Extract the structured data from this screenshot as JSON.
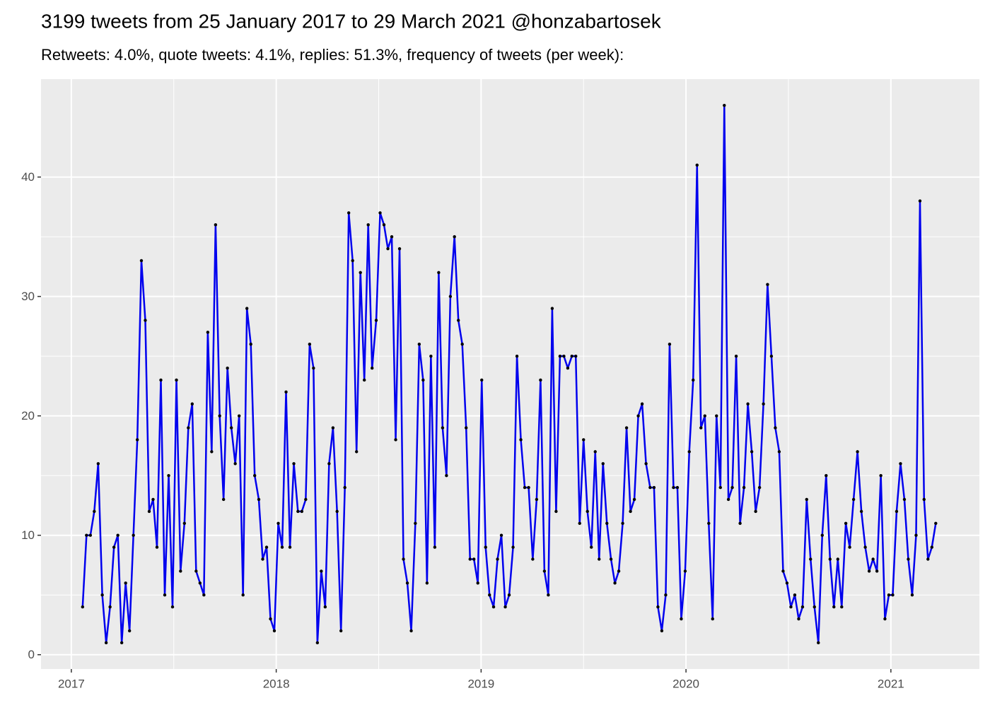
{
  "chart_data": {
    "type": "line",
    "title": "3199 tweets from 25 January 2017 to 29 March 2021 @honzabartosek",
    "subtitle": "Retweets: 4.0%, quote tweets: 4.1%, replies: 51.3%, frequency of tweets (per week):",
    "x": [
      2017.055,
      2017.074,
      2017.093,
      2017.112,
      2017.131,
      2017.151,
      2017.17,
      2017.189,
      2017.208,
      2017.227,
      2017.246,
      2017.265,
      2017.284,
      2017.303,
      2017.322,
      2017.342,
      2017.361,
      2017.38,
      2017.399,
      2017.418,
      2017.437,
      2017.456,
      2017.475,
      2017.494,
      2017.513,
      2017.533,
      2017.552,
      2017.571,
      2017.59,
      2017.609,
      2017.628,
      2017.647,
      2017.666,
      2017.685,
      2017.704,
      2017.724,
      2017.743,
      2017.762,
      2017.781,
      2017.8,
      2017.819,
      2017.838,
      2017.857,
      2017.876,
      2017.895,
      2017.915,
      2017.934,
      2017.953,
      2017.972,
      2017.991,
      2018.01,
      2018.029,
      2018.048,
      2018.067,
      2018.086,
      2018.106,
      2018.125,
      2018.144,
      2018.163,
      2018.182,
      2018.201,
      2018.22,
      2018.239,
      2018.258,
      2018.277,
      2018.297,
      2018.316,
      2018.335,
      2018.354,
      2018.373,
      2018.392,
      2018.411,
      2018.43,
      2018.449,
      2018.468,
      2018.488,
      2018.507,
      2018.526,
      2018.545,
      2018.564,
      2018.583,
      2018.602,
      2018.621,
      2018.64,
      2018.659,
      2018.679,
      2018.698,
      2018.717,
      2018.736,
      2018.755,
      2018.774,
      2018.793,
      2018.812,
      2018.831,
      2018.85,
      2018.87,
      2018.889,
      2018.908,
      2018.927,
      2018.946,
      2018.965,
      2018.984,
      2019.003,
      2019.022,
      2019.041,
      2019.061,
      2019.08,
      2019.099,
      2019.118,
      2019.137,
      2019.156,
      2019.175,
      2019.194,
      2019.213,
      2019.232,
      2019.252,
      2019.271,
      2019.29,
      2019.309,
      2019.328,
      2019.347,
      2019.366,
      2019.385,
      2019.404,
      2019.423,
      2019.443,
      2019.462,
      2019.481,
      2019.5,
      2019.519,
      2019.538,
      2019.557,
      2019.576,
      2019.595,
      2019.614,
      2019.634,
      2019.653,
      2019.672,
      2019.691,
      2019.71,
      2019.729,
      2019.748,
      2019.767,
      2019.786,
      2019.805,
      2019.825,
      2019.844,
      2019.863,
      2019.882,
      2019.901,
      2019.92,
      2019.939,
      2019.958,
      2019.977,
      2019.996,
      2020.016,
      2020.035,
      2020.054,
      2020.073,
      2020.092,
      2020.111,
      2020.13,
      2020.149,
      2020.168,
      2020.187,
      2020.207,
      2020.226,
      2020.245,
      2020.264,
      2020.283,
      2020.302,
      2020.321,
      2020.34,
      2020.359,
      2020.378,
      2020.398,
      2020.417,
      2020.436,
      2020.455,
      2020.474,
      2020.493,
      2020.512,
      2020.531,
      2020.55,
      2020.569,
      2020.589,
      2020.608,
      2020.627,
      2020.646,
      2020.665,
      2020.684,
      2020.703,
      2020.722,
      2020.741,
      2020.76,
      2020.78,
      2020.799,
      2020.818,
      2020.837,
      2020.856,
      2020.875,
      2020.894,
      2020.913,
      2020.932,
      2020.951,
      2020.971,
      2020.99,
      2021.009,
      2021.028,
      2021.047,
      2021.066,
      2021.085,
      2021.104,
      2021.123,
      2021.142,
      2021.162,
      2021.181,
      2021.2,
      2021.219
    ],
    "series": [
      {
        "color": "#0000ee",
        "point_color": "#000000",
        "values": [
          4,
          10,
          10,
          12,
          16,
          5,
          1,
          4,
          9,
          10,
          1,
          6,
          2,
          10,
          18,
          33,
          28,
          12,
          13,
          9,
          23,
          5,
          15,
          4,
          23,
          7,
          11,
          19,
          21,
          7,
          6,
          5,
          27,
          17,
          36,
          20,
          13,
          24,
          19,
          16,
          20,
          5,
          29,
          26,
          15,
          13,
          8,
          9,
          3,
          2,
          11,
          9,
          22,
          9,
          16,
          12,
          12,
          13,
          26,
          24,
          1,
          7,
          4,
          16,
          19,
          12,
          2,
          14,
          37,
          33,
          17,
          32,
          23,
          36,
          24,
          28,
          37,
          36,
          34,
          35,
          18,
          34,
          8,
          6,
          2,
          11,
          26,
          23,
          6,
          25,
          9,
          32,
          19,
          15,
          30,
          35,
          28,
          26,
          19,
          8,
          8,
          6,
          23,
          9,
          5,
          4,
          8,
          10,
          4,
          5,
          9,
          25,
          18,
          14,
          14,
          8,
          13,
          23,
          7,
          5,
          29,
          12,
          25,
          25,
          24,
          25,
          25,
          11,
          18,
          12,
          9,
          17,
          8,
          16,
          11,
          8,
          6,
          7,
          11,
          19,
          12,
          13,
          20,
          21,
          16,
          14,
          14,
          4,
          2,
          5,
          26,
          14,
          14,
          3,
          7,
          17,
          23,
          41,
          19,
          20,
          11,
          3,
          20,
          14,
          46,
          13,
          14,
          25,
          11,
          14,
          21,
          17,
          12,
          14,
          21,
          31,
          25,
          19,
          17,
          7,
          6,
          4,
          5,
          3,
          4,
          13,
          8,
          4,
          1,
          10,
          15,
          8,
          4,
          8,
          4,
          11,
          9,
          13,
          17,
          12,
          9,
          7,
          8,
          7,
          15,
          3,
          5,
          5,
          12,
          16,
          13,
          8,
          5,
          10,
          38,
          13,
          8,
          9,
          11
        ]
      }
    ],
    "xlim": [
      2016.852,
      2021.432
    ],
    "xticks": [
      2017,
      2018,
      2019,
      2020,
      2021
    ],
    "ylim": [
      -1.2,
      48.2
    ],
    "yticks": [
      0,
      10,
      20,
      30,
      40
    ],
    "grid": true,
    "minor_grid": true,
    "panel_color": "#ebebeb"
  }
}
